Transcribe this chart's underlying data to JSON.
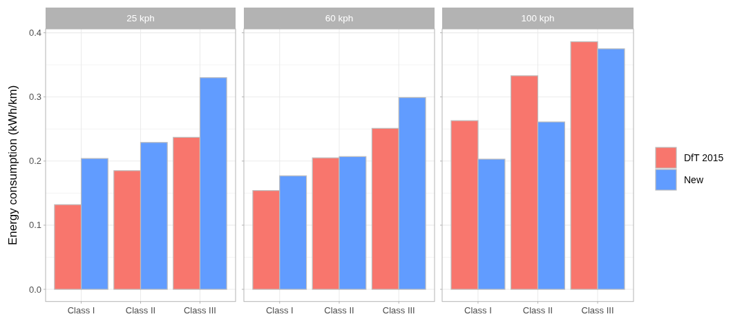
{
  "chart_data": [
    {
      "type": "bar",
      "title": "25 kph",
      "ylabel": "Energy consumption (kWh/km)",
      "categories": [
        "Class I",
        "Class II",
        "Class III"
      ],
      "series": [
        {
          "color": "#f8766d",
          "values": [
            0.132,
            0.185,
            0.237
          ]
        },
        {
          "color": "#619cff",
          "values": [
            0.204,
            0.229,
            0.33
          ]
        }
      ],
      "ylim": [
        -0.019,
        0.406
      ],
      "yticks": [
        {
          "value": 0.0,
          "label": "0.0"
        },
        {
          "value": 0.05,
          "label": null
        },
        {
          "value": 0.1,
          "label": "0.1"
        },
        {
          "value": 0.15,
          "label": null
        },
        {
          "value": 0.2,
          "label": "0.2"
        },
        {
          "value": 0.25,
          "label": null
        },
        {
          "value": 0.3,
          "label": "0.3"
        },
        {
          "value": 0.35,
          "label": null
        },
        {
          "value": 0.4,
          "label": "0.4"
        }
      ],
      "grid": true,
      "legend": false
    },
    {
      "type": "bar",
      "title": "60 kph",
      "categories": [
        "Class I",
        "Class II",
        "Class III"
      ],
      "series": [
        {
          "color": "#f8766d",
          "values": [
            0.154,
            0.205,
            0.251
          ]
        },
        {
          "color": "#619cff",
          "values": [
            0.177,
            0.207,
            0.299
          ]
        }
      ],
      "ylim": [
        -0.019,
        0.406
      ],
      "yticks": [
        0,
        {
          "value": 0.05,
          "label": null
        },
        0.1,
        {
          "value": 0.15,
          "label": null
        },
        0.2,
        {
          "value": 0.25,
          "label": null
        },
        0.3,
        {
          "value": 0.35,
          "label": null
        },
        0.4
      ],
      "grid": true,
      "legend": false,
      "tick_labels": "x"
    },
    {
      "type": "bar",
      "title": "100 kph",
      "categories": [
        "Class I",
        "Class II",
        "Class III"
      ],
      "series": [
        {
          "name": "DfT 2015",
          "color": "#f8766d",
          "values": [
            0.263,
            0.333,
            0.386
          ]
        },
        {
          "name": "New",
          "color": "#619cff",
          "values": [
            0.203,
            0.261,
            0.375
          ]
        }
      ],
      "ylim": [
        -0.019,
        0.406
      ],
      "yticks": [
        0,
        {
          "value": 0.05,
          "label": null
        },
        0.1,
        {
          "value": 0.15,
          "label": null
        },
        0.2,
        {
          "value": 0.25,
          "label": null
        },
        0.3,
        {
          "value": 0.35,
          "label": null
        },
        0.4
      ],
      "grid": true,
      "legend": "right",
      "tick_labels": "x"
    }
  ]
}
